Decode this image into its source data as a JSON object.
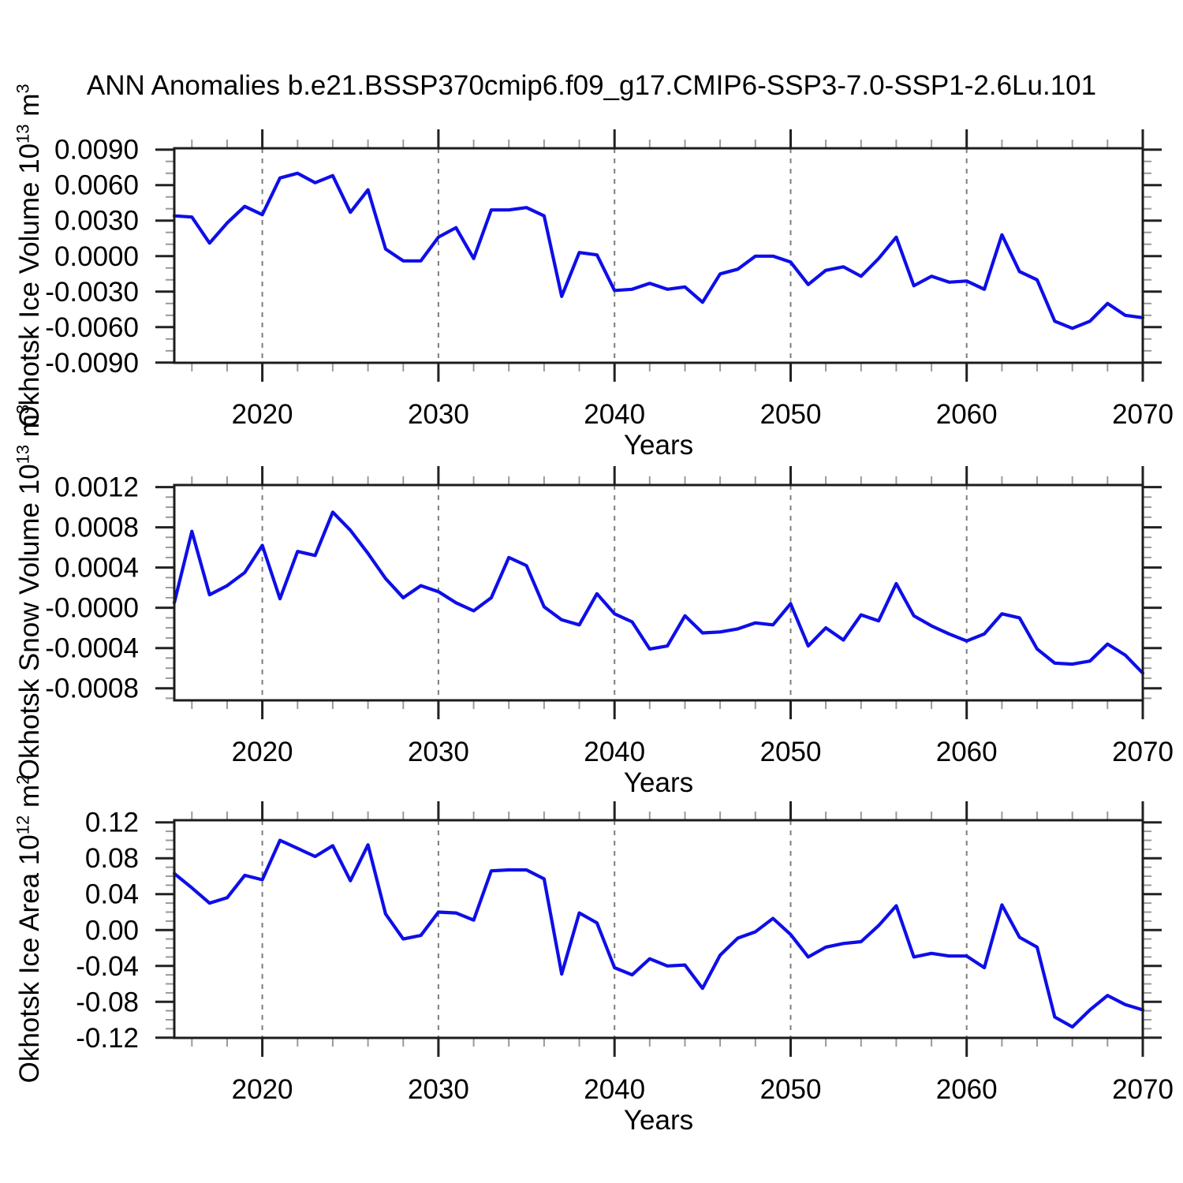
{
  "title": "ANN Anomalies b.e21.BSSP370cmip6.f09_g17.CMIP6-SSP3-7.0-SSP1-2.6Lu.101",
  "line_color": "#0e0ee8",
  "grid_color": "#7d7d7d",
  "axis_color": "#1c1c1c",
  "minor_tick_color": "#999999",
  "chart_data": [
    {
      "type": "line",
      "id": "ice-volume",
      "ylabel": {
        "prefix": "Okhotsk Ice Volume 10",
        "exp": "13",
        "unit": " m",
        "unit_exp": "3"
      },
      "xlabel": "Years",
      "xlim": [
        2015,
        2070
      ],
      "ylim": [
        -0.00901,
        0.00911
      ],
      "xticks": [
        2020,
        2030,
        2040,
        2050,
        2060,
        2070
      ],
      "xgrid": [
        2020,
        2030,
        2040,
        2050,
        2060
      ],
      "xminor_step": 2,
      "yticks": [
        0.009,
        0.006,
        0.003,
        0.0,
        -0.003,
        -0.006,
        -0.009
      ],
      "ytick_labels": [
        "0.0090",
        "0.0060",
        "0.0030",
        "0.0000",
        "-0.0030",
        "-0.0060",
        "-0.0090"
      ],
      "yminor_step": 0.001,
      "legend": null,
      "grid": "dashed-vertical-decades",
      "x": [
        2015,
        2016,
        2017,
        2018,
        2019,
        2020,
        2021,
        2022,
        2023,
        2024,
        2025,
        2026,
        2027,
        2028,
        2029,
        2030,
        2031,
        2032,
        2033,
        2034,
        2035,
        2036,
        2037,
        2038,
        2039,
        2040,
        2041,
        2042,
        2043,
        2044,
        2045,
        2046,
        2047,
        2048,
        2049,
        2050,
        2051,
        2052,
        2053,
        2054,
        2055,
        2056,
        2057,
        2058,
        2059,
        2060,
        2061,
        2062,
        2063,
        2064,
        2065,
        2066,
        2067,
        2068,
        2069,
        2070
      ],
      "values": [
        0.0034,
        0.0033,
        0.0011,
        0.0028,
        0.0042,
        0.0035,
        0.0066,
        0.007,
        0.0062,
        0.0068,
        0.0037,
        0.0056,
        0.0006,
        -0.0004,
        -0.0004,
        0.0016,
        0.0024,
        -0.0002,
        0.0039,
        0.0039,
        0.0041,
        0.0034,
        -0.0034,
        0.0003,
        0.0001,
        -0.0029,
        -0.0028,
        -0.0023,
        -0.0028,
        -0.0026,
        -0.0039,
        -0.0015,
        -0.0011,
        0.0,
        0.0,
        -0.0005,
        -0.0024,
        -0.0012,
        -0.0009,
        -0.0017,
        -0.0002,
        0.0016,
        -0.0025,
        -0.0017,
        -0.0022,
        -0.0021,
        -0.0028,
        0.0018,
        -0.0013,
        -0.002,
        -0.0055,
        -0.0061,
        -0.0055,
        -0.004,
        -0.005,
        -0.0052
      ]
    },
    {
      "type": "line",
      "id": "snow-volume",
      "ylabel": {
        "prefix": "Okhotsk Snow Volume 10",
        "exp": "13",
        "unit": " m",
        "unit_exp": "3"
      },
      "xlabel": "Years",
      "xlim": [
        2015,
        2070
      ],
      "ylim": [
        -0.00092,
        0.00122
      ],
      "xticks": [
        2020,
        2030,
        2040,
        2050,
        2060,
        2070
      ],
      "xgrid": [
        2020,
        2030,
        2040,
        2050,
        2060
      ],
      "xminor_step": 2,
      "yticks": [
        0.0012,
        0.0008,
        0.0004,
        0.0,
        -0.0004,
        -0.0008
      ],
      "ytick_labels": [
        "0.0012",
        "0.0008",
        "0.0004",
        "-0.0000",
        "-0.0004",
        "-0.0008"
      ],
      "yminor_step": 0.0001,
      "legend": null,
      "grid": "dashed-vertical-decades",
      "x": [
        2015,
        2016,
        2017,
        2018,
        2019,
        2020,
        2021,
        2022,
        2023,
        2024,
        2025,
        2026,
        2027,
        2028,
        2029,
        2030,
        2031,
        2032,
        2033,
        2034,
        2035,
        2036,
        2037,
        2038,
        2039,
        2040,
        2041,
        2042,
        2043,
        2044,
        2045,
        2046,
        2047,
        2048,
        2049,
        2050,
        2051,
        2052,
        2053,
        2054,
        2055,
        2056,
        2057,
        2058,
        2059,
        2060,
        2061,
        2062,
        2063,
        2064,
        2065,
        2066,
        2067,
        2068,
        2069,
        2070
      ],
      "values": [
        5e-05,
        0.00076,
        0.00013,
        0.00022,
        0.00035,
        0.00062,
        9e-05,
        0.00056,
        0.00052,
        0.00095,
        0.00077,
        0.00054,
        0.00029,
        0.0001,
        0.00022,
        0.00016,
        5e-05,
        -3e-05,
        0.0001,
        0.0005,
        0.00042,
        1e-05,
        -0.00012,
        -0.00017,
        0.00014,
        -6e-05,
        -0.00014,
        -0.00041,
        -0.00038,
        -8e-05,
        -0.00025,
        -0.00024,
        -0.00021,
        -0.00015,
        -0.00017,
        4e-05,
        -0.00038,
        -0.0002,
        -0.00032,
        -7e-05,
        -0.00013,
        0.00024,
        -8e-05,
        -0.00018,
        -0.00026,
        -0.00033,
        -0.00026,
        -6e-05,
        -0.0001,
        -0.00041,
        -0.00055,
        -0.00056,
        -0.00053,
        -0.00036,
        -0.00047,
        -0.00065
      ]
    },
    {
      "type": "line",
      "id": "ice-area",
      "ylabel": {
        "prefix": "Okhotsk Ice Area 10",
        "exp": "12",
        "unit": " m",
        "unit_exp": "2"
      },
      "xlabel": "Years",
      "xlim": [
        2015,
        2070
      ],
      "ylim": [
        -0.1202,
        0.1224
      ],
      "xticks": [
        2020,
        2030,
        2040,
        2050,
        2060,
        2070
      ],
      "xgrid": [
        2020,
        2030,
        2040,
        2050,
        2060
      ],
      "xminor_step": 2,
      "yticks": [
        0.12,
        0.08,
        0.04,
        0.0,
        -0.04,
        -0.08,
        -0.12
      ],
      "ytick_labels": [
        "0.12",
        "0.08",
        "0.04",
        "0.00",
        "-0.04",
        "-0.08",
        "-0.12"
      ],
      "yminor_step": 0.01,
      "legend": null,
      "grid": "dashed-vertical-decades",
      "x": [
        2015,
        2016,
        2017,
        2018,
        2019,
        2020,
        2021,
        2022,
        2023,
        2024,
        2025,
        2026,
        2027,
        2028,
        2029,
        2030,
        2031,
        2032,
        2033,
        2034,
        2035,
        2036,
        2037,
        2038,
        2039,
        2040,
        2041,
        2042,
        2043,
        2044,
        2045,
        2046,
        2047,
        2048,
        2049,
        2050,
        2051,
        2052,
        2053,
        2054,
        2055,
        2056,
        2057,
        2058,
        2059,
        2060,
        2061,
        2062,
        2063,
        2064,
        2065,
        2066,
        2067,
        2068,
        2069,
        2070
      ],
      "values": [
        0.063,
        0.047,
        0.03,
        0.036,
        0.061,
        0.056,
        0.1,
        0.091,
        0.082,
        0.094,
        0.055,
        0.095,
        0.018,
        -0.01,
        -0.006,
        0.02,
        0.019,
        0.011,
        0.066,
        0.067,
        0.067,
        0.057,
        -0.049,
        0.019,
        0.008,
        -0.042,
        -0.05,
        -0.032,
        -0.04,
        -0.039,
        -0.065,
        -0.028,
        -0.009,
        -0.002,
        0.013,
        -0.005,
        -0.03,
        -0.019,
        -0.015,
        -0.013,
        0.005,
        0.027,
        -0.03,
        -0.026,
        -0.029,
        -0.029,
        -0.042,
        0.028,
        -0.008,
        -0.019,
        -0.097,
        -0.108,
        -0.089,
        -0.073,
        -0.083,
        -0.089
      ]
    }
  ]
}
